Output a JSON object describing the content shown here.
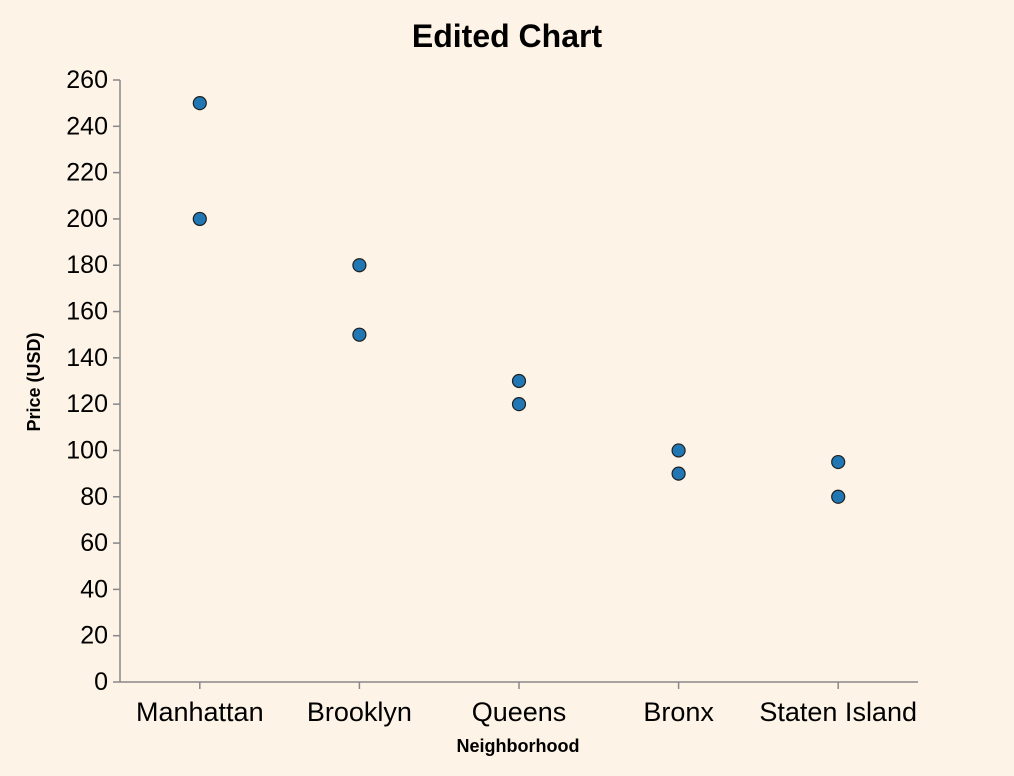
{
  "chart_data": {
    "type": "scatter",
    "title": "Edited Chart",
    "xlabel": "Neighborhood",
    "ylabel": "Price (USD)",
    "categories": [
      "Manhattan",
      "Brooklyn",
      "Queens",
      "Bronx",
      "Staten Island"
    ],
    "points": [
      {
        "x": "Manhattan",
        "y": 250
      },
      {
        "x": "Manhattan",
        "y": 200
      },
      {
        "x": "Brooklyn",
        "y": 180
      },
      {
        "x": "Brooklyn",
        "y": 150
      },
      {
        "x": "Queens",
        "y": 130
      },
      {
        "x": "Queens",
        "y": 120
      },
      {
        "x": "Bronx",
        "y": 100
      },
      {
        "x": "Bronx",
        "y": 90
      },
      {
        "x": "Staten Island",
        "y": 95
      },
      {
        "x": "Staten Island",
        "y": 80
      }
    ],
    "ylim": [
      0,
      260
    ],
    "yticks": [
      0,
      20,
      40,
      60,
      80,
      100,
      120,
      140,
      160,
      180,
      200,
      220,
      240,
      260
    ],
    "grid": false,
    "point_color": "#2077b4",
    "background": "#fdf3e6"
  }
}
